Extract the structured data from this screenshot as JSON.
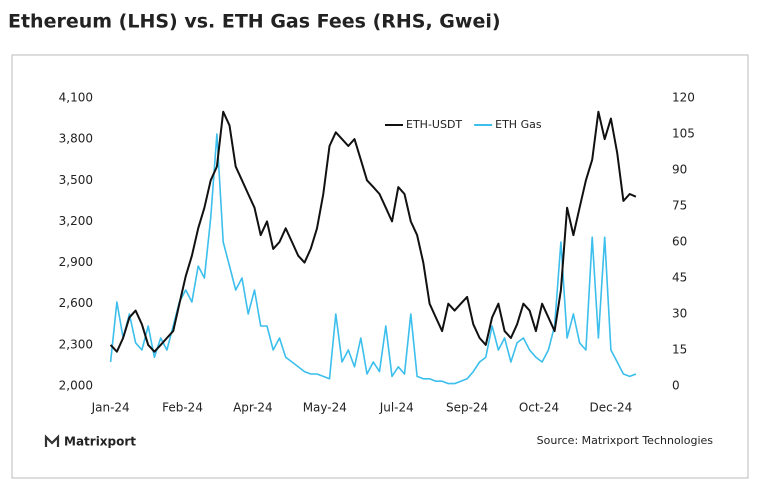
{
  "chart_data": {
    "type": "line",
    "title": "Ethereum (LHS) vs. ETH Gas Fees (RHS, Gwei)",
    "brand": "Matrixport",
    "source": "Source: Matrixport Technologies",
    "x": [
      0,
      4,
      8,
      12,
      16,
      20,
      24,
      28,
      32,
      36,
      40,
      44,
      48,
      52,
      56,
      60,
      64,
      68,
      72,
      76,
      80,
      84,
      88,
      92,
      96,
      100,
      104,
      108,
      112,
      116,
      120,
      124,
      128,
      132,
      136,
      140,
      144,
      148,
      152,
      156,
      160,
      164,
      168,
      172,
      176,
      180,
      184,
      188,
      192,
      196,
      200,
      204,
      208,
      212,
      216,
      220,
      224,
      228,
      232,
      236,
      240,
      244,
      248,
      252,
      256,
      260,
      264,
      268,
      272,
      276,
      280,
      284,
      288,
      292,
      296,
      300,
      304,
      308,
      312,
      316,
      320,
      324,
      328,
      332,
      336
    ],
    "series": [
      {
        "name": "ETH-USDT",
        "color": "#111111",
        "values": [
          2300,
          2250,
          2350,
          2500,
          2550,
          2450,
          2300,
          2250,
          2300,
          2350,
          2400,
          2600,
          2800,
          2950,
          3150,
          3300,
          3500,
          3600,
          4000,
          3900,
          3600,
          3500,
          3400,
          3300,
          3100,
          3200,
          3000,
          3050,
          3150,
          3050,
          2950,
          2900,
          3000,
          3150,
          3400,
          3750,
          3850,
          3800,
          3750,
          3800,
          3650,
          3500,
          3450,
          3400,
          3300,
          3200,
          3450,
          3400,
          3200,
          3100,
          2900,
          2600,
          2500,
          2400,
          2600,
          2550,
          2600,
          2650,
          2450,
          2350,
          2300,
          2500,
          2600,
          2400,
          2350,
          2450,
          2600,
          2550,
          2400,
          2600,
          2500,
          2400,
          2700,
          3300,
          3100,
          3300,
          3500,
          3650,
          4000,
          3800,
          3950,
          3700,
          3350,
          3400,
          3380
        ]
      },
      {
        "name": "ETH Gas",
        "color": "#3cbfec",
        "axis": "y2",
        "values": [
          10,
          35,
          20,
          30,
          18,
          15,
          25,
          12,
          20,
          15,
          25,
          35,
          40,
          35,
          50,
          45,
          70,
          105,
          60,
          50,
          40,
          45,
          30,
          40,
          25,
          25,
          15,
          20,
          12,
          10,
          8,
          6,
          5,
          5,
          4,
          3,
          30,
          10,
          15,
          8,
          20,
          5,
          10,
          6,
          25,
          4,
          8,
          5,
          30,
          4,
          3,
          3,
          2,
          2,
          1,
          1,
          2,
          3,
          6,
          10,
          12,
          25,
          15,
          20,
          10,
          18,
          20,
          15,
          12,
          10,
          15,
          25,
          60,
          20,
          30,
          18,
          15,
          62,
          20,
          62,
          15,
          10,
          5,
          4,
          5
        ]
      }
    ],
    "xlim": [
      -10,
      345
    ],
    "xticks": [
      {
        "value": 0,
        "label": "Jan-24"
      },
      {
        "value": 46,
        "label": "Feb-24"
      },
      {
        "value": 91,
        "label": "Apr-24"
      },
      {
        "value": 137,
        "label": "May-24"
      },
      {
        "value": 183,
        "label": "Jul-24"
      },
      {
        "value": 228,
        "label": "Sep-24"
      },
      {
        "value": 274,
        "label": "Oct-24"
      },
      {
        "value": 320,
        "label": "Dec-24"
      }
    ],
    "ylim": [
      2000,
      4100
    ],
    "yticks": [
      {
        "value": 2000,
        "label": "2,000"
      },
      {
        "value": 2300,
        "label": "2,300"
      },
      {
        "value": 2600,
        "label": "2,600"
      },
      {
        "value": 2900,
        "label": "2,900"
      },
      {
        "value": 3200,
        "label": "3,200"
      },
      {
        "value": 3500,
        "label": "3,500"
      },
      {
        "value": 3800,
        "label": "3,800"
      },
      {
        "value": 4100,
        "label": "4,100"
      }
    ],
    "y2lim": [
      0,
      120
    ],
    "y2ticks": [
      0,
      15,
      30,
      45,
      60,
      75,
      90,
      105,
      120
    ],
    "grid": false,
    "legend": "top"
  }
}
